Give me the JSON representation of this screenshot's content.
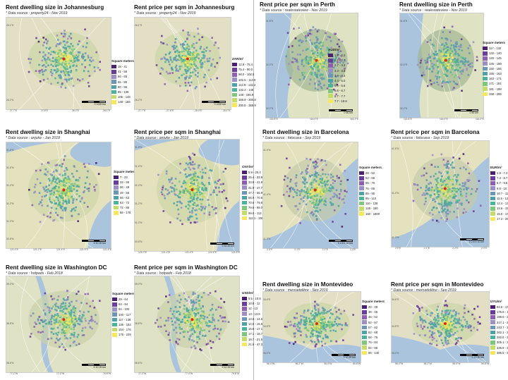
{
  "panels": [
    {
      "id": "jnb-size",
      "title": "Rent dwelling size in Johannesburg",
      "source": "* Data source : property24 - Nov 2019",
      "legend_title": "Square meters",
      "legend": [
        "18 - 41",
        "41 - 56",
        "56 - 65",
        "65 - 80",
        "80 - 95",
        "95 - 106",
        "106 - 148",
        "148 - 186"
      ],
      "scale": "0 1000 km",
      "colors": {
        "land": "#e2dfc4",
        "water": "#a9c4dc",
        "urban": "#cdd5a6",
        "mark": "#e0261a"
      },
      "kind": "inland",
      "x_ticks": [
        "27.7°E",
        "27.8°E",
        "28.0°E",
        "28.1°E"
      ],
      "y_ticks": [
        "26.1°S",
        "26.2°S"
      ]
    },
    {
      "id": "jnb-price",
      "title": "Rent price per sqm in Johannesburg",
      "source": "* Data source : property24 - Nov 2019",
      "legend_title": "ZAR/m²",
      "legend": [
        "12.9 - 75.4",
        "75.4 - 90.0",
        "90.0 - 102.5",
        "102.5 - 113.9",
        "113.9 - 132.2",
        "132.2 - 148",
        "148 - 166.9",
        "166.9 - 200.8",
        "200.8 - 368.9"
      ],
      "scale": "0 1000 km",
      "colors": {
        "land": "#e2dfc4",
        "water": "#a9c4dc",
        "urban": "#cdd5a6",
        "mark": "#e0261a"
      },
      "kind": "inland",
      "x_ticks": [
        "27.7°E",
        "27.8°E",
        "28.0°E",
        "28.1°E"
      ],
      "y_ticks": [
        "26.1°S",
        "26.2°S"
      ]
    },
    {
      "id": "per-price",
      "title": "Rent price per sqm in Perth",
      "source": "* Data source : realestateview - Nov 2019",
      "legend_title": "AUD/m²",
      "legend": [
        "1.6 - 2.2",
        "2.2 - 2.7",
        "2.7 - 3.3",
        "3.3 - 3.8",
        "3.8 - 4.4",
        "4.4 - 5.0",
        "5.0 - 5.6",
        "5.6 - 6.7",
        "6.7 - 7.7",
        "7.7 - 18.8"
      ],
      "scale": "0 50 km",
      "colors": {
        "land": "#dfe3c3",
        "water": "#a9c4dc",
        "urban": "#a3b792",
        "mark": "#e0261a"
      },
      "kind": "coast-west",
      "x_ticks": [
        "115.8°E",
        "116.0°E",
        "116.2°E"
      ],
      "y_ticks": [
        "31.8°S",
        "32.0°S",
        "32.2°S"
      ]
    },
    {
      "id": "per-size",
      "title": "Rent dwelling size in Perth",
      "source": "* Data source : realestateview - Nov 2019",
      "legend_title": "Square meters",
      "legend": [
        "117 - 132",
        "132 - 140",
        "140 - 145",
        "145 - 150",
        "150 - 156",
        "156 - 163",
        "163 - 171",
        "171 - 181",
        "181 - 198",
        "198 - 299"
      ],
      "scale": "0 50 km",
      "colors": {
        "land": "#dfe3c3",
        "water": "#a9c4dc",
        "urban": "#a3b792",
        "mark": "#e0261a"
      },
      "kind": "coast-west",
      "x_ticks": [
        "115.8°E",
        "116.0°E",
        "116.2°E"
      ],
      "y_ticks": [
        "31.8°S",
        "32.0°S",
        "32.2°S"
      ]
    },
    {
      "id": "sha-size",
      "title": "Rent dwelling size in Shanghai",
      "source": "* Data source : anjuke - Jan 2019",
      "legend_title": "Square meters",
      "legend": [
        "7 - 23",
        "23 - 36",
        "36 - 49",
        "49 - 56",
        "56 - 63",
        "63 - 72",
        "72 - 86",
        "86 - 178"
      ],
      "scale": "0 10 20 km",
      "colors": {
        "land": "#e4e1bf",
        "water": "#a9c4dc",
        "urban": "#cdd5a6",
        "mark": "#e0261a"
      },
      "kind": "delta",
      "x_ticks": [
        "121.0°E",
        "121.2°E",
        "121.4°E",
        "121.6°E",
        "121.8°E"
      ],
      "y_ticks": [
        "31.8°N",
        "31.6°N",
        "31.4°N",
        "31.2°N",
        "31.0°N",
        "30.8°N"
      ]
    },
    {
      "id": "sha-price",
      "title": "Rent price per sqm in Shanghai",
      "source": "* Data source : anjuke - Jan 2019",
      "legend_title": "CNY/m²",
      "legend": [
        "5.9 - 25.4",
        "25.4 - 33.9",
        "33.9 - 41.9",
        "41.9 - 47.7",
        "47.7 - 56.9",
        "56.9 - 70.6",
        "70.6 - 79.6",
        "79.6 - 99.0",
        "99.0 - 112.1",
        "112.1 - 196.3"
      ],
      "scale": "0 10 20 km",
      "colors": {
        "land": "#e4e1bf",
        "water": "#a9c4dc",
        "urban": "#cdd5a6",
        "mark": "#e0261a"
      },
      "kind": "delta",
      "x_ticks": [
        "121.0°E",
        "121.2°E",
        "121.4°E",
        "121.6°E",
        "121.8°E"
      ],
      "y_ticks": [
        "31.8°N",
        "31.6°N",
        "31.4°N",
        "31.2°N",
        "31.0°N",
        "30.8°N"
      ]
    },
    {
      "id": "bcn-size",
      "title": "Rent dwelling size in Barcelona",
      "source": "* Data source : fotocasa - Sep 2019",
      "legend_title": "Square meters",
      "legend": [
        "28 - 52",
        "52 - 65",
        "65 - 76",
        "76 - 85",
        "85 - 95",
        "95 - 110",
        "110 - 128",
        "128 - 160",
        "160 - 1800"
      ],
      "scale": "0 2.5 5 10 km",
      "colors": {
        "land": "#e4e1bf",
        "water": "#a9c4dc",
        "urban": "#c5ccaa",
        "mark": "#e0261a"
      },
      "kind": "coast-south",
      "x_ticks": [
        "2.0°E",
        "2.1°E",
        "2.2°E",
        "2.3°E"
      ],
      "y_ticks": [
        "41.5°N",
        "41.4°N",
        "41.3°N"
      ]
    },
    {
      "id": "bcn-price",
      "title": "Rent price per sqm in Barcelona",
      "source": "* Data source : fotocasa - Sep 2019",
      "legend_title": "EUR/m²",
      "legend": [
        "2.9 - 7.3",
        "7.3 - 8.7",
        "8.7 - 9.8",
        "9.8 - 10.7",
        "10.7 - 11.5",
        "11.5 - 12.4",
        "12.4 - 13.6",
        "13.6 - 15.0",
        "15.0 - 17.2",
        "17.2 - 26.2"
      ],
      "scale": "0 2.5 5 10 km",
      "colors": {
        "land": "#e4e1bf",
        "water": "#a9c4dc",
        "urban": "#c5ccaa",
        "mark": "#e0261a"
      },
      "kind": "coast-south",
      "x_ticks": [
        "2.0°E",
        "2.1°E",
        "2.2°E",
        "2.3°E"
      ],
      "y_ticks": [
        "41.5°N",
        "41.4°N",
        "41.3°N"
      ]
    },
    {
      "id": "dc-size",
      "title": "Rent dwelling size in Washington DC",
      "source": "* Data source : hotpads - Feb 2018",
      "legend_title": "Square meters",
      "legend": [
        "29 - 64",
        "64 - 84",
        "84 - 100",
        "100 - 117",
        "117 - 136",
        "136 - 154",
        "154 - 176",
        "176 - 229"
      ],
      "scale": "0 10 20 km",
      "colors": {
        "land": "#e0e2c6",
        "water": "#a9c4dc",
        "urban": "#c9d2aa",
        "mark": "#e0261a"
      },
      "kind": "river",
      "x_ticks": [
        "77.2°W",
        "77.0°W",
        "76.8°W"
      ],
      "y_ticks": [
        "39.0°N",
        "38.8°N",
        "38.6°N"
      ]
    },
    {
      "id": "dc-price",
      "title": "Rent price per sqm in Washington DC",
      "source": "* Data source : hotpads - Feb 2018",
      "legend_title": "USD/m²",
      "legend": [
        "5.5 - 10.8",
        "10.8 - 12",
        "12 - 13",
        "13 - 13.8",
        "13.8 - 14.6",
        "14.6 - 15.6",
        "15.6 - 17.1",
        "17.1 - 18.7",
        "18.7 - 21.6",
        "21.6 - 47.3"
      ],
      "scale": "0 10 20 km",
      "colors": {
        "land": "#e0e2c6",
        "water": "#a9c4dc",
        "urban": "#c9d2aa",
        "mark": "#e0261a"
      },
      "kind": "river",
      "x_ticks": [
        "77.2°W",
        "77.0°W",
        "76.8°W"
      ],
      "y_ticks": [
        "39.0°N",
        "38.8°N",
        "38.6°N"
      ]
    },
    {
      "id": "mvd-size",
      "title": "Rent dwelling size in Montevideo",
      "source": "* Data source : mercadolibre - Sep 2019",
      "legend_title": "Square meters",
      "legend": [
        "20 - 38",
        "38 - 46",
        "46 - 52",
        "52 - 57",
        "57 - 62",
        "62 - 68",
        "68 - 76",
        "76 - 84",
        "84 - 96",
        "96 - 140"
      ],
      "scale": "0 10 20 km",
      "colors": {
        "land": "#e2dfc4",
        "water": "#a9c4dc",
        "urban": "#cdd5a6",
        "mark": "#e0261a"
      },
      "kind": "coast-bottom",
      "x_ticks": [
        "56.4°W",
        "56.2°W",
        "56.0°W",
        "55.8°W"
      ],
      "y_ticks": [
        "34.6°S",
        "34.8°S",
        "35.0°S"
      ]
    },
    {
      "id": "mvd-price",
      "title": "Rent price per sqm in Montevideo",
      "source": "* Data source : mercadolibre - Sep 2019",
      "legend_title": "UYU/m²",
      "legend": [
        "93.5 - 175.6",
        "175.6 - 199.6",
        "199.6 - 217.1",
        "217.1 - 243.7",
        "243.7 - 262.1",
        "262.1 - 282.8",
        "282.8 - 305.1",
        "305.1 - 336.9",
        "336.9 - 385.5",
        "385.5 - 855.1"
      ],
      "scale": "0 10 20 km",
      "colors": {
        "land": "#e2dfc4",
        "water": "#a9c4dc",
        "urban": "#cdd5a6",
        "mark": "#e0261a"
      },
      "kind": "coast-bottom",
      "x_ticks": [
        "56.4°W",
        "56.2°W",
        "56.0°W",
        "55.8°W"
      ],
      "y_ticks": [
        "34.6°S",
        "34.8°S",
        "35.0°S"
      ]
    }
  ],
  "palette": [
    "#4b1f6f",
    "#6a3d9a",
    "#8e5fb0",
    "#9b8fc4",
    "#6c95b6",
    "#4fa1a8",
    "#4bb39a",
    "#7fc77c",
    "#c3dc6a",
    "#f6e85a"
  ]
}
